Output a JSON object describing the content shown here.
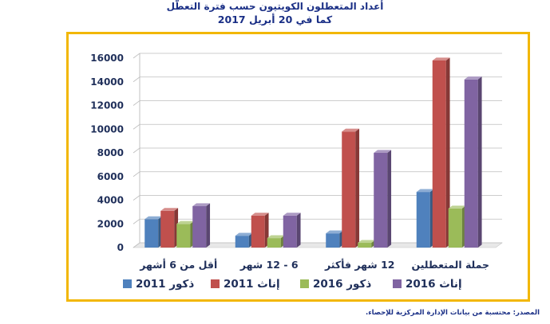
{
  "header": {
    "title": "أعداد المتعطلون الكويتيون حسب فترة التعطّل",
    "subtitle": "كما في 20 أبريل 2017"
  },
  "footer": {
    "source": "المصدر: محتسبة من بيانات الإدارة المركزية للإحصاء."
  },
  "colors": {
    "frame": "#f2b705",
    "series": [
      "#4f81bd",
      "#c0504d",
      "#9bbb59",
      "#8064a2"
    ]
  },
  "chart_data": {
    "type": "bar",
    "style": "3d-clustered",
    "title": "أعداد المتعطلون الكويتيون حسب فترة التعطّل",
    "subtitle": "كما في 20 أبريل 2017",
    "categories": [
      "أقل من 6 أشهر",
      "6 - 12 شهر",
      "12 شهر فأكثر",
      "جملة المتعطلين"
    ],
    "series": [
      {
        "name": "2011 ذكور",
        "values": [
          2400,
          1000,
          1200,
          4700
        ]
      },
      {
        "name": "2011 إناث",
        "values": [
          3100,
          2700,
          9800,
          15800
        ]
      },
      {
        "name": "2016 ذكور",
        "values": [
          2000,
          800,
          400,
          3300
        ]
      },
      {
        "name": "2016 إناث",
        "values": [
          3500,
          2700,
          8000,
          14200
        ]
      }
    ],
    "y_ticks": [
      "0",
      "2000",
      "4000",
      "6000",
      "8000",
      "10000",
      "12000",
      "14000",
      "16000"
    ],
    "ylim": [
      0,
      16000
    ],
    "grid": true,
    "legend_position": "bottom"
  }
}
